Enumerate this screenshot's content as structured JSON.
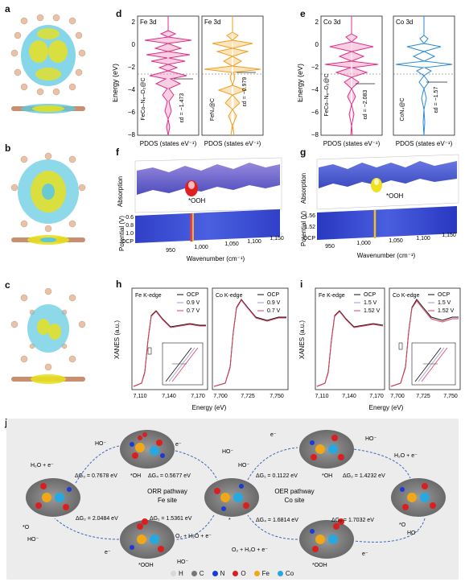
{
  "panels": {
    "a": "a",
    "b": "b",
    "c": "c",
    "d": "d",
    "e": "e",
    "f": "f",
    "g": "g",
    "h": "h",
    "i": "i",
    "j": "j"
  },
  "pdos_d": {
    "ylabel": "Energy (eV)",
    "xlabel": "PDOS (states eV⁻¹)",
    "left": {
      "title": "Fe 3d",
      "sample": "FeCo–N₆–O₂@C",
      "center": "εd = −1.473",
      "color": "#e0308a"
    },
    "right": {
      "title": "Fe 3d",
      "sample": "FeN₄@C",
      "center": "εd = −0.979",
      "color": "#f0a020"
    },
    "yticks": [
      "2",
      "0",
      "−2",
      "−4",
      "−6",
      "−8"
    ]
  },
  "pdos_e": {
    "ylabel": "Energy (eV)",
    "xlabel": "PDOS (states eV⁻¹)",
    "left": {
      "title": "Co 3d",
      "sample": "FeCo–N₆–O₂@C",
      "center": "εd = −2.083",
      "color": "#e0308a"
    },
    "right": {
      "title": "Co 3d",
      "sample": "CoN₄@C",
      "center": "εd = −1.57",
      "color": "#2a8ad8"
    },
    "yticks": [
      "2",
      "0",
      "−2",
      "−4",
      "−6",
      "−8"
    ]
  },
  "ir_f": {
    "zlabel": "Absorption",
    "ylabel": "Potential (V)",
    "xlabel": "Wavenumber (cm⁻¹)",
    "yticks": [
      "0.6",
      "0.8",
      "1.0",
      "OCP"
    ],
    "xticks": [
      "950",
      "1,000",
      "1,050",
      "1,100",
      "1,150"
    ],
    "annotation": "*OOH"
  },
  "ir_g": {
    "zlabel": "Absorption",
    "ylabel": "Potential (V)",
    "xlabel": "Wavenumber (cm⁻¹)",
    "yticks": [
      "1.56",
      "1.52",
      "OCP"
    ],
    "xticks": [
      "950",
      "1,000",
      "1,050",
      "1,100",
      "1,150"
    ],
    "annotation": "*OOH"
  },
  "xanes_h": {
    "ylabel": "XANES (a.u.)",
    "xlabel": "Energy (eV)",
    "left": {
      "title": "Fe K-edge",
      "legend": [
        "OCP",
        "0.9 V",
        "0.7 V"
      ],
      "xticks": [
        "7,110",
        "7,140",
        "7,170"
      ]
    },
    "right": {
      "title": "Co K-edge",
      "legend": [
        "OCP",
        "0.9 V",
        "0.7 V"
      ],
      "xticks": [
        "7,700",
        "7,725",
        "7,750"
      ]
    }
  },
  "xanes_i": {
    "ylabel": "XANES (a.u.)",
    "xlabel": "Energy (eV)",
    "left": {
      "title": "Fe K-edge",
      "legend": [
        "OCP",
        "1.5 V",
        "1.52 V"
      ],
      "xticks": [
        "7,110",
        "7,140",
        "7,170"
      ]
    },
    "right": {
      "title": "Co K-edge",
      "legend": [
        "OCP",
        "1.5 V",
        "1.52 V"
      ],
      "xticks": [
        "7,700",
        "7,725",
        "7,750"
      ]
    }
  },
  "colors": {
    "ocp": "#111111",
    "mid": "#9a9ad0",
    "low": "#e04060"
  },
  "pathway": {
    "orr": "ORR pathway",
    "orr_site": "Fe site",
    "oer": "OER pathway",
    "oer_site": "Co site",
    "dg3_orr": "ΔG₃ = 0.7678 eV",
    "dg4_orr": "ΔG₄ = 0.5677 eV",
    "dg2_orr": "ΔG₂ = 2.0484 eV",
    "dg1_orr": "ΔG₁ = 1.5361 eV",
    "dg1_oer": "ΔG₁ = 0.1122 eV",
    "dg2_oer": "ΔG₂ = 1.4232 eV",
    "dg4_oer": "ΔG₄ = 1.6814 eV",
    "dg3_oer": "ΔG₃ = 1.7032 eV",
    "oh_top": "*OH",
    "oh_right": "*OH",
    "o_left": "*O",
    "o_right": "*O",
    "ooh_left": "*OOH",
    "ooh_right": "*OOH",
    "star": "*",
    "ho_minus": "HO⁻",
    "e_minus": "e⁻",
    "h2o_e_left": "H₂O + e⁻",
    "h2o_e_right": "H₂O + e⁻",
    "o2_h2o_e": "O₂ + H₂O + e⁻"
  },
  "legend": [
    {
      "label": "H",
      "color": "#d8d8d8"
    },
    {
      "label": "C",
      "color": "#777777"
    },
    {
      "label": "N",
      "color": "#1a3ad8"
    },
    {
      "label": "O",
      "color": "#d82020"
    },
    {
      "label": "Fe",
      "color": "#f0a818"
    },
    {
      "label": "Co",
      "color": "#28a8e0"
    }
  ]
}
